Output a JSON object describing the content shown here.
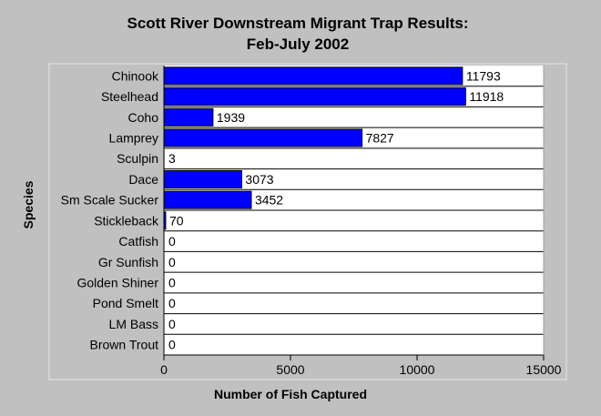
{
  "chart_data": {
    "type": "bar",
    "orientation": "horizontal",
    "title": "Scott River Downstream Migrant Trap Results:",
    "subtitle": "Feb-July 2002",
    "xlabel": "Number of Fish Captured",
    "ylabel": "Species",
    "xlim": [
      0,
      15000
    ],
    "xticks": [
      0,
      5000,
      10000,
      15000
    ],
    "grid": "horizontal",
    "categories": [
      "Chinook",
      "Steelhead",
      "Coho",
      "Lamprey",
      "Sculpin",
      "Dace",
      "Sm Scale Sucker",
      "Stickleback",
      "Catfish",
      "Gr Sunfish",
      "Golden Shiner",
      "Pond Smelt",
      "LM Bass",
      "Brown Trout"
    ],
    "values": [
      11793,
      11918,
      1939,
      7827,
      3,
      3073,
      3452,
      70,
      0,
      0,
      0,
      0,
      0,
      0
    ],
    "bar_color": "#0000ff",
    "plot_background": "#ffffff",
    "page_background": "#c0c0c0"
  }
}
